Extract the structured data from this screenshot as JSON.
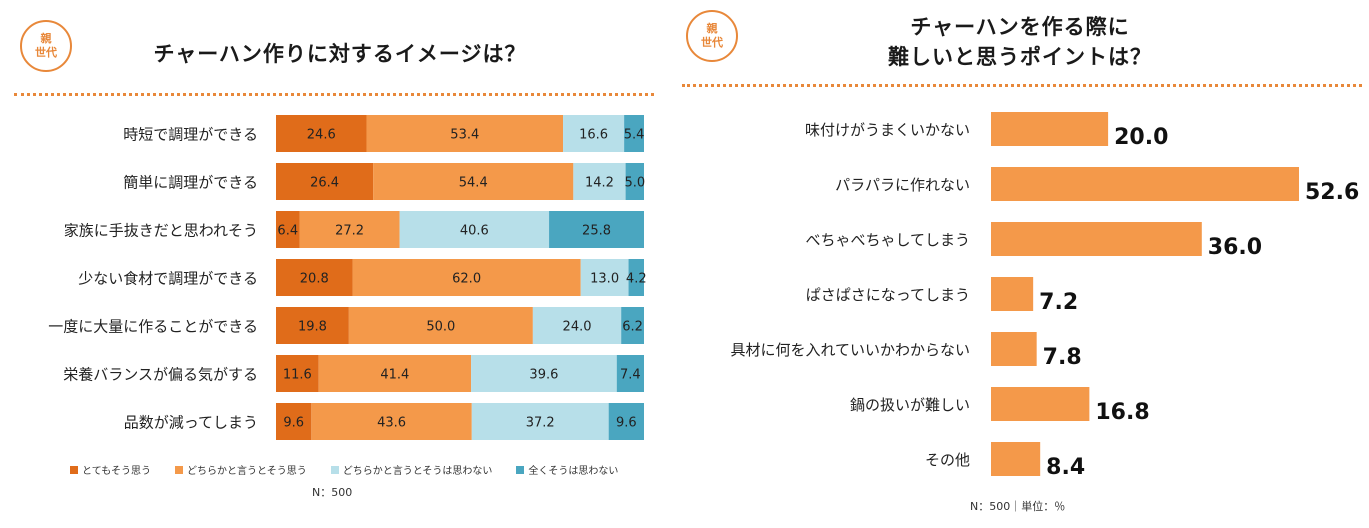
{
  "left": {
    "badge": [
      "親",
      "世代"
    ],
    "title": "チャーハン作りに対するイメージは？",
    "footnote": "N：500"
  },
  "right": {
    "badge": [
      "親",
      "世代"
    ],
    "title_lines": [
      "チャーハンを作る際に",
      "難しいと思うポイントは？"
    ],
    "footnote": "N：500｜単位：％"
  },
  "colors": {
    "accent": "#e8883a",
    "segments": [
      "#e06c1a",
      "#f4994a",
      "#b7dfe9",
      "#4aa6c0"
    ],
    "bar": "#f4994a"
  },
  "chart_data": [
    {
      "type": "bar",
      "orientation": "horizontal",
      "stacked": true,
      "title": "チャーハン作りに対するイメージは？",
      "categories": [
        "時短で調理ができる",
        "簡単に調理ができる",
        "家族に手抜きだと思われそう",
        "少ない食材で調理ができる",
        "一度に大量に作ることができる",
        "栄養バランスが偏る気がする",
        "品数が減ってしまう"
      ],
      "series": [
        {
          "name": "とてもそう思う",
          "values": [
            24.6,
            26.4,
            6.4,
            20.8,
            19.8,
            11.6,
            9.6
          ]
        },
        {
          "name": "どちらかと言うとそう思う",
          "values": [
            53.4,
            54.4,
            27.2,
            62.0,
            50.0,
            41.4,
            43.6
          ]
        },
        {
          "name": "どちらかと言うとそうは思わない",
          "values": [
            16.6,
            14.2,
            40.6,
            13.0,
            24.0,
            39.6,
            37.2
          ]
        },
        {
          "name": "全くそうは思わない",
          "values": [
            5.4,
            5.0,
            25.8,
            4.2,
            6.2,
            7.4,
            9.6
          ]
        }
      ],
      "xlim": [
        0,
        100
      ]
    },
    {
      "type": "bar",
      "orientation": "horizontal",
      "title": "チャーハンを作る際に難しいと思うポイントは？",
      "categories": [
        "味付けがうまくいかない",
        "パラパラに作れない",
        "べちゃべちゃしてしまう",
        "ぱさぱさになってしまう",
        "具材に何を入れていいかわからない",
        "鍋の扱いが難しい",
        "その他"
      ],
      "values": [
        20.0,
        52.6,
        36.0,
        7.2,
        7.8,
        16.8,
        8.4
      ],
      "xlim": [
        0,
        52.6
      ]
    }
  ]
}
